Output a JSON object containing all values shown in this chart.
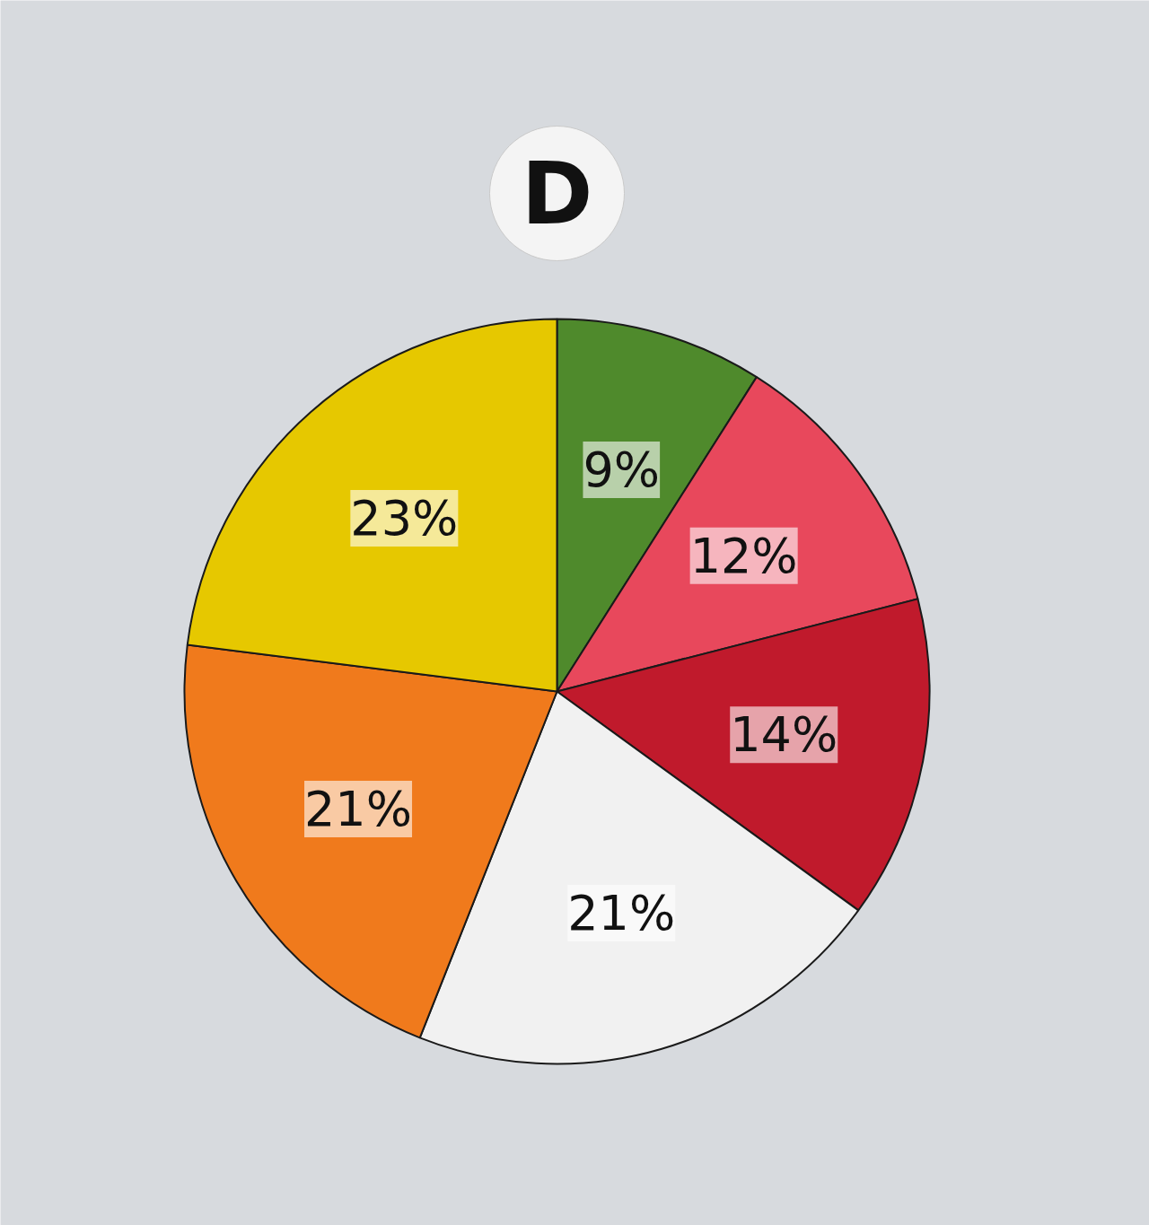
{
  "chart_data": {
    "type": "pie",
    "title": "D",
    "categories": [
      null,
      null,
      null,
      null,
      null,
      null
    ],
    "values": [
      9,
      12,
      14,
      21,
      21,
      23
    ],
    "colors": [
      "#4f8a2c",
      "#e8485c",
      "#c01a2c",
      "#f1f1f1",
      "#f07a1c",
      "#e6c800"
    ],
    "value_labels": [
      "9%",
      "12%",
      "14%",
      "21%",
      "21%",
      "23%"
    ]
  }
}
